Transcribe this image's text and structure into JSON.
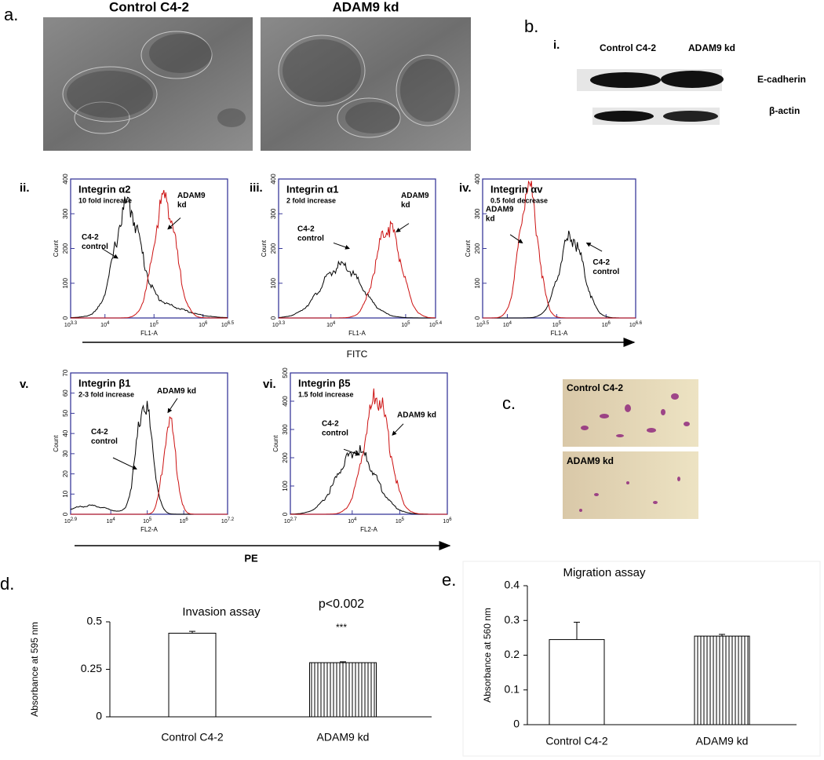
{
  "panel_a": {
    "label": "a.",
    "titles": [
      "Control C4-2",
      "ADAM9 kd"
    ]
  },
  "panel_b": {
    "label": "b.",
    "sub_label": "i.",
    "lanes": [
      "Control C4-2",
      "ADAM9  kd"
    ],
    "bands": [
      "E-cadherin",
      "β-actin"
    ]
  },
  "histograms": [
    {
      "label": "ii.",
      "title": "Integrin α2",
      "subtitle": "10 fold increase",
      "red_label": [
        "ADAM9",
        "kd"
      ],
      "black_label": [
        "C4-2",
        "control"
      ],
      "y_label": "Count",
      "x_label": "FL1-A",
      "yticks": [
        0,
        100,
        200,
        300,
        400
      ],
      "x_base": "10",
      "x_exps": [
        3.3,
        4,
        5,
        6,
        6.5
      ]
    },
    {
      "label": "iii.",
      "title": "Integrin α1",
      "subtitle": "2 fold increase",
      "red_label": [
        "ADAM9",
        "kd"
      ],
      "black_label": [
        "C4-2",
        "control"
      ],
      "y_label": "Count",
      "x_label": "FL1-A",
      "yticks": [
        0,
        100,
        200,
        300,
        400
      ],
      "x_base": "10",
      "x_exps": [
        3.3,
        4,
        5,
        5.4
      ]
    },
    {
      "label": "iv.",
      "title": "Integrin αv",
      "subtitle": "0.5 fold decrease",
      "red_label": [
        "ADAM9",
        "kd"
      ],
      "black_label": [
        "C4-2",
        "control"
      ],
      "y_label": "Count",
      "x_label": "FL1-A",
      "yticks": [
        0,
        100,
        200,
        300,
        400
      ],
      "x_base": "10",
      "x_exps": [
        3.5,
        4,
        5,
        6,
        6.6
      ]
    },
    {
      "label": "v.",
      "title": "Integrin β1",
      "subtitle": "2-3 fold increase",
      "red_label": [
        "ADAM9 kd"
      ],
      "black_label": [
        "C4-2",
        "control"
      ],
      "y_label": "Count",
      "x_label": "FL2-A",
      "yticks": [
        0,
        10,
        20,
        30,
        40,
        50,
        60,
        70
      ],
      "x_base": "10",
      "x_exps": [
        2.9,
        4,
        5,
        6,
        7.2
      ]
    },
    {
      "label": "vi.",
      "title": "Integrin β5",
      "subtitle": "1.5 fold increase",
      "red_label": [
        "ADAM9 kd"
      ],
      "black_label": [
        "C4-2",
        "control"
      ],
      "y_label": "Count",
      "x_label": "FL2-A",
      "yticks": [
        0,
        100,
        200,
        300,
        400,
        500
      ],
      "x_base": "10",
      "x_exps": [
        2.7,
        4,
        5,
        6
      ]
    }
  ],
  "axis_arrows": [
    "FITC",
    "PE"
  ],
  "panel_c": {
    "label": "c.",
    "titles": [
      "Control C4-2",
      "ADAM9 kd"
    ]
  },
  "chart_data": [
    {
      "type": "bar",
      "label": "d.",
      "title": "Invasion assay",
      "y_label": "Absorbance at 595 nm",
      "categories": [
        "Control C4-2",
        "ADAM9 kd"
      ],
      "values": [
        0.44,
        0.285
      ],
      "errors": [
        0.01,
        0.005
      ],
      "bar_styles": [
        "plain",
        "striped"
      ],
      "ylim": [
        0,
        0.5
      ],
      "yticks": [
        0,
        0.25,
        0.5
      ],
      "annotations": [
        "p<0.002",
        "***"
      ]
    },
    {
      "type": "bar",
      "label": "e.",
      "title": "Migration assay",
      "y_label": "Absorbance at 560 nm",
      "categories": [
        "Control C4-2",
        "ADAM9 kd"
      ],
      "values": [
        0.245,
        0.255
      ],
      "errors": [
        0.05,
        0.005
      ],
      "bar_styles": [
        "plain",
        "striped"
      ],
      "ylim": [
        0,
        0.4
      ],
      "yticks": [
        0,
        0.1,
        0.2,
        0.3,
        0.4
      ]
    }
  ]
}
